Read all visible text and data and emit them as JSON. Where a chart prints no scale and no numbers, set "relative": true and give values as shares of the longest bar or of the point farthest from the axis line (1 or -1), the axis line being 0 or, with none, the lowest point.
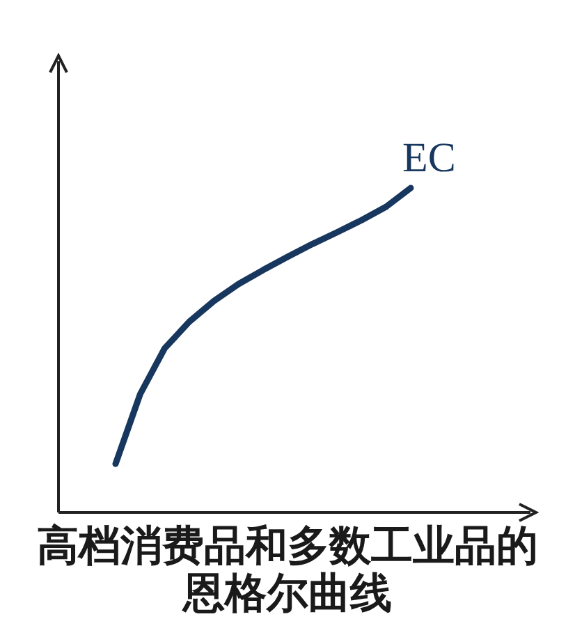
{
  "chart_data": {
    "type": "line",
    "relative": true,
    "title": "高档消费品和多数工业品的恩格尔曲线",
    "categories": [
      null,
      null,
      null,
      null,
      null,
      null,
      null,
      null,
      null,
      null,
      null,
      null,
      null
    ],
    "series": [
      {
        "name": "EC",
        "color": "#17375e",
        "values": [
          0.15,
          0.365,
          0.506,
          0.588,
          0.652,
          0.704,
          0.747,
          0.788,
          0.827,
          0.863,
          0.901,
          0.942,
          1
        ]
      }
    ]
  }
}
